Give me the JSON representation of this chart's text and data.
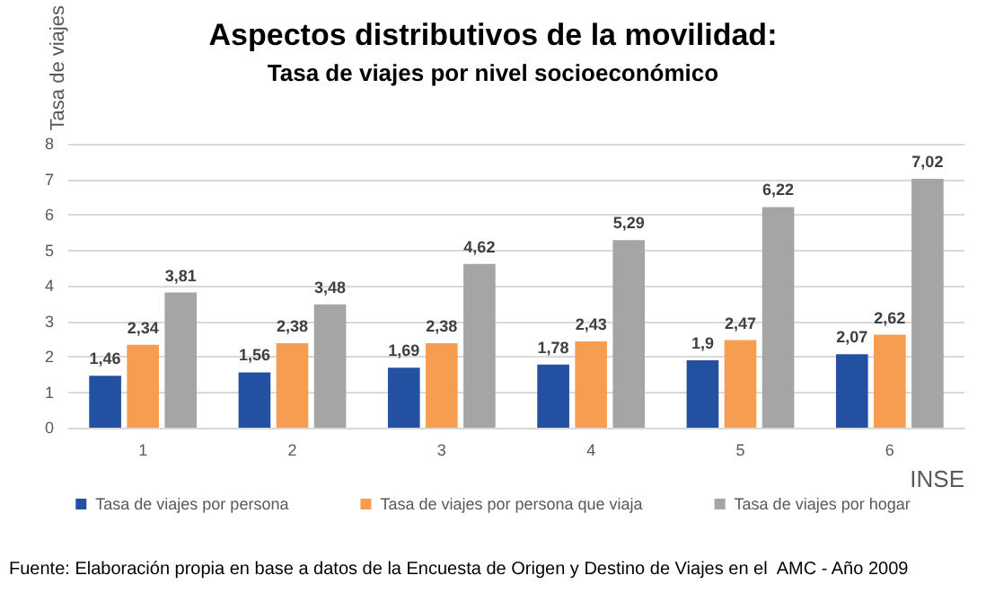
{
  "chart_data": {
    "type": "bar",
    "title": "Aspectos distributivos de la movilidad:",
    "subtitle": "Tasa de viajes por nivel socioeconómico",
    "xlabel": "INSE",
    "ylabel": "Tasa de viajes",
    "categories": [
      "1",
      "2",
      "3",
      "4",
      "5",
      "6"
    ],
    "series": [
      {
        "name": "Tasa de viajes por persona",
        "color": "#2350a0",
        "values": [
          1.46,
          1.56,
          1.69,
          1.78,
          1.9,
          2.07
        ],
        "value_labels": [
          "1,46",
          "1,56",
          "1,69",
          "1,78",
          "1,9",
          "2,07"
        ]
      },
      {
        "name": "Tasa de viajes por persona que viaja",
        "color": "#f79d52",
        "values": [
          2.34,
          2.38,
          2.38,
          2.43,
          2.47,
          2.62
        ],
        "value_labels": [
          "2,34",
          "2,38",
          "2,38",
          "2,43",
          "2,47",
          "2,62"
        ]
      },
      {
        "name": "Tasa de viajes por hogar",
        "color": "#a5a5a5",
        "values": [
          3.81,
          3.48,
          4.62,
          5.29,
          6.22,
          7.02
        ],
        "value_labels": [
          "3,81",
          "3,48",
          "4,62",
          "5,29",
          "6,22",
          "7,02"
        ]
      }
    ],
    "ylim": [
      0,
      8
    ],
    "yticks": [
      0,
      1,
      2,
      3,
      4,
      5,
      6,
      7,
      8
    ],
    "grid": "y",
    "legend": "bottom",
    "annotations": [
      "Fuente: Elaboración propia en base a datos de la Encuesta de Origen y Destino de Viajes en el  AMC - Año 2009"
    ]
  }
}
